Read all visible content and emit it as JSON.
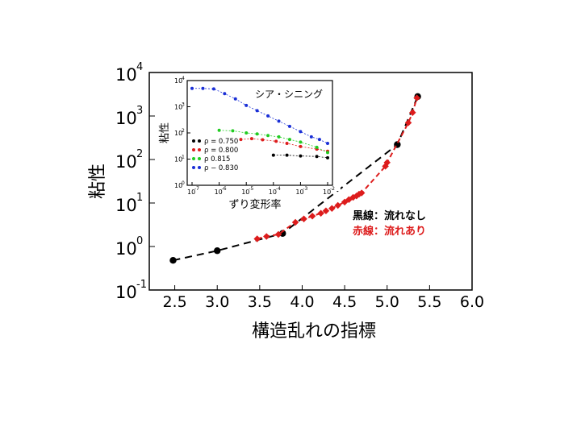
{
  "chart_data": [
    {
      "type": "scatter",
      "xlabel": "構造乱れの指標",
      "ylabel": "粘性",
      "yscale": "log",
      "xlim": [
        2.2,
        6.0
      ],
      "ylim_exp": [
        -1,
        4
      ],
      "x_ticks": [
        "2.5",
        "3.0",
        "3.5",
        "4.0",
        "4.5",
        "5.0",
        "5.5",
        "6.0"
      ],
      "y_ticks": [
        {
          "base": "10",
          "exp": "-1"
        },
        {
          "base": "10",
          "exp": "0"
        },
        {
          "base": "10",
          "exp": "1"
        },
        {
          "base": "10",
          "exp": "2"
        },
        {
          "base": "10",
          "exp": "3"
        },
        {
          "base": "10",
          "exp": "4"
        }
      ],
      "legend": {
        "placement": "center-right",
        "entries": [
          "黒線：流れなし",
          "赤線：流れあり"
        ]
      },
      "series": [
        {
          "name": "黒線：流れなし",
          "color": "#000000",
          "x": [
            2.48,
            3.0,
            3.77,
            5.12,
            5.36
          ],
          "y": [
            0.48,
            0.8,
            2.0,
            220,
            2800
          ]
        },
        {
          "name": "赤線：流れあり",
          "color": "#dd1c1c",
          "x": [
            3.47,
            3.58,
            3.72,
            3.92,
            4.02,
            4.12,
            4.22,
            4.28,
            4.35,
            4.42,
            4.5,
            4.55,
            4.6,
            4.64,
            4.67,
            4.7,
            4.98,
            5.0,
            5.25,
            5.3,
            5.35
          ],
          "y": [
            1.5,
            1.7,
            1.9,
            3.6,
            4.3,
            5.0,
            5.8,
            6.6,
            7.5,
            8.8,
            10.5,
            12,
            13.5,
            14.5,
            16,
            17,
            70,
            85,
            700,
            1200,
            2600
          ]
        }
      ]
    },
    {
      "type": "scatter",
      "title": "シア・シニング",
      "xlabel": "ずり変形率",
      "ylabel": "粘性",
      "xscale": "log",
      "yscale": "log",
      "x_ticks_exp": [
        "-7",
        "-6",
        "-5",
        "-4",
        "-3",
        "-2"
      ],
      "y_ticks_exp": [
        "0",
        "1",
        "2",
        "3",
        "4"
      ],
      "series": [
        {
          "name": "ρ = 0.750",
          "color": "#000000",
          "x_exp": [
            -4,
            -3.5,
            -3,
            -2.4,
            -2
          ],
          "y_exp": [
            1.15,
            1.15,
            1.12,
            1.1,
            1.05
          ]
        },
        {
          "name": "ρ = 0.800",
          "color": "#dd1c1c",
          "x_exp": [
            -5.2,
            -4.8,
            -4.4,
            -3.9,
            -3.5,
            -3,
            -2.4,
            -2
          ],
          "y_exp": [
            1.75,
            1.78,
            1.74,
            1.68,
            1.6,
            1.48,
            1.38,
            1.3
          ]
        },
        {
          "name": "ρ    0.815",
          "color": "#22cc22",
          "x_exp": [
            -6,
            -5.5,
            -5,
            -4.6,
            -4.2,
            -3.8,
            -3.4,
            -3,
            -2.4,
            -2
          ],
          "y_exp": [
            2.1,
            2.08,
            2.0,
            1.96,
            1.9,
            1.85,
            1.75,
            1.65,
            1.45,
            1.25
          ]
        },
        {
          "name": "ρ − 0.830",
          "color": "#1a2fd6",
          "x_exp": [
            -7,
            -6.6,
            -6.2,
            -5.8,
            -5.4,
            -5,
            -4.6,
            -4.2,
            -3.8,
            -3.4,
            -3,
            -2.6,
            -2.3,
            -2
          ],
          "y_exp": [
            3.7,
            3.7,
            3.68,
            3.5,
            3.3,
            3.05,
            2.85,
            2.65,
            2.45,
            2.25,
            2.05,
            1.85,
            1.75,
            1.6
          ]
        }
      ]
    }
  ]
}
